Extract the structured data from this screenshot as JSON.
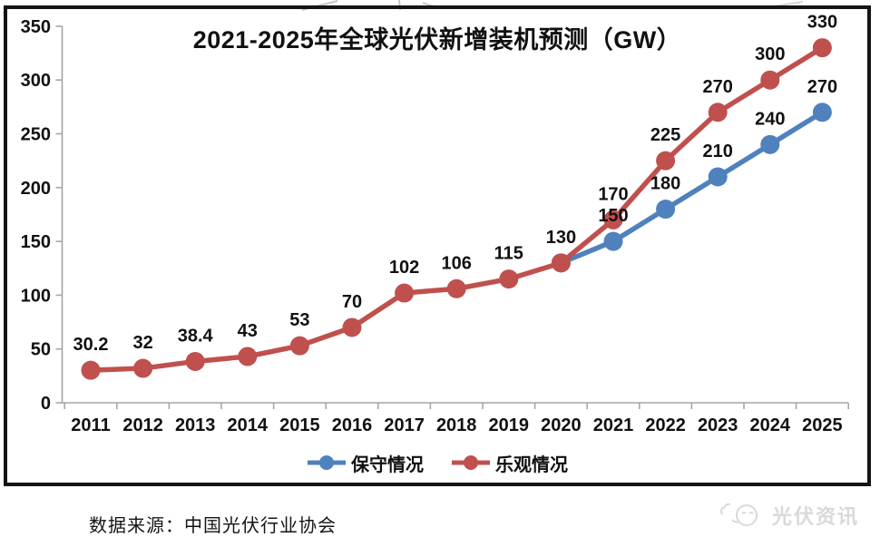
{
  "title": "2021-2025年全球光伏新增装机预测（GW）",
  "source_note": "数据来源：中国光伏行业协会",
  "watermark": {
    "text": "光伏资讯"
  },
  "colors": {
    "conservative": "#4F81BD",
    "optimistic": "#C0504D",
    "axis": "#A6A6A6",
    "frame": "#141414",
    "label_text": "#111111",
    "watermark_gray": "#d9d9d9",
    "top_scribble": "#b8b8b8"
  },
  "legend": [
    {
      "label": "保守情况",
      "color": "#4F81BD"
    },
    {
      "label": "乐观情况",
      "color": "#C0504D"
    }
  ],
  "chart_data": {
    "type": "line",
    "title": "2021-2025年全球光伏新增装机预测（GW）",
    "categories": [
      "2011",
      "2012",
      "2013",
      "2014",
      "2015",
      "2016",
      "2017",
      "2018",
      "2019",
      "2020",
      "2021",
      "2022",
      "2023",
      "2024",
      "2025"
    ],
    "series": [
      {
        "name": "保守情况",
        "color": "#4F81BD",
        "values": [
          null,
          null,
          null,
          null,
          null,
          null,
          null,
          null,
          null,
          130,
          150,
          180,
          210,
          240,
          270
        ]
      },
      {
        "name": "乐观情况",
        "color": "#C0504D",
        "values": [
          30.2,
          32,
          38.4,
          43,
          53,
          70,
          102,
          106,
          115,
          130,
          170,
          225,
          270,
          300,
          330
        ]
      }
    ],
    "xlabel": "",
    "ylabel": "",
    "ylim": [
      0,
      350
    ],
    "ytick_step": 50,
    "grid": false,
    "legend_position": "bottom",
    "data_labels": true
  }
}
